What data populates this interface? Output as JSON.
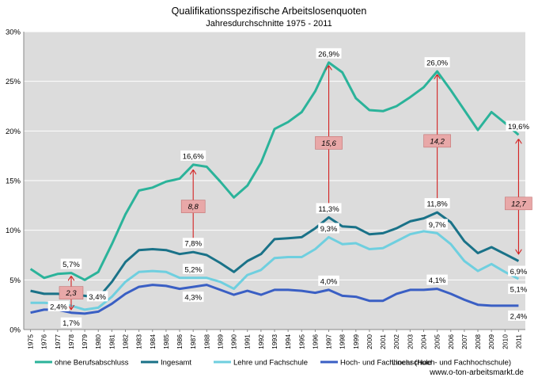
{
  "chart_data": {
    "type": "line",
    "title": "Qualifikationsspezifische Arbeitslosenquoten",
    "subtitle": "Jahresdurchschnitte 1975 - 2011",
    "source": "www.o-ton-arbeitsmarkt.de",
    "ylim": [
      0,
      30
    ],
    "yticks": [
      0,
      5,
      10,
      15,
      20,
      25,
      30
    ],
    "ytick_labels": [
      "0%",
      "5%",
      "10%",
      "15%",
      "20%",
      "25%",
      "30%"
    ],
    "x": [
      "1975",
      "1976",
      "1977",
      "1978",
      "1979",
      "1980",
      "1981",
      "1982",
      "1983",
      "1984",
      "1985",
      "1986",
      "1987",
      "1988",
      "1989",
      "1990",
      "1991",
      "1992",
      "1993",
      "1994",
      "1995",
      "1996",
      "1997",
      "1998",
      "1999",
      "2000",
      "2001",
      "2002",
      "2003",
      "2004",
      "2005",
      "2006",
      "2007",
      "2008",
      "2009",
      "2010",
      "2011"
    ],
    "grid": true,
    "legend_position": "bottom",
    "series": [
      {
        "name": "ohne Berufsabschluss",
        "color": "#2bb39a",
        "values": [
          6.1,
          5.2,
          5.6,
          5.7,
          5.0,
          5.8,
          8.6,
          11.6,
          14.0,
          14.3,
          14.9,
          15.2,
          16.6,
          16.4,
          14.9,
          13.3,
          14.5,
          16.8,
          20.2,
          20.9,
          21.9,
          24.0,
          26.9,
          25.9,
          23.3,
          22.1,
          22.0,
          22.5,
          23.4,
          24.4,
          26.0,
          24.1,
          22.1,
          20.1,
          21.9,
          20.8,
          19.6
        ]
      },
      {
        "name": "Ingesamt",
        "color": "#1a7288",
        "values": [
          3.9,
          3.6,
          3.6,
          3.5,
          3.4,
          3.2,
          4.8,
          6.8,
          8.0,
          8.1,
          8.0,
          7.6,
          7.8,
          7.5,
          6.7,
          5.8,
          6.9,
          7.6,
          9.1,
          9.2,
          9.3,
          10.2,
          11.3,
          10.4,
          10.3,
          9.6,
          9.7,
          10.2,
          10.9,
          11.2,
          11.8,
          10.8,
          8.9,
          7.7,
          8.3,
          7.6,
          6.9
        ]
      },
      {
        "name": "Lehre und Fachschule",
        "color": "#6fcfdf",
        "values": [
          2.7,
          2.7,
          2.6,
          2.4,
          2.0,
          2.2,
          3.3,
          4.8,
          5.8,
          5.9,
          5.8,
          5.2,
          5.2,
          5.2,
          4.8,
          4.1,
          5.5,
          6.0,
          7.2,
          7.3,
          7.3,
          8.1,
          9.3,
          8.6,
          8.7,
          8.1,
          8.2,
          8.9,
          9.6,
          9.9,
          9.7,
          8.6,
          6.9,
          5.9,
          6.6,
          5.8,
          5.1
        ]
      },
      {
        "name": "Hoch- und Fachhochschule",
        "color": "#3a5fc4",
        "values": [
          1.7,
          2.0,
          2.0,
          1.7,
          1.6,
          1.8,
          2.6,
          3.6,
          4.3,
          4.5,
          4.4,
          4.1,
          4.3,
          4.5,
          4.0,
          3.5,
          3.9,
          3.5,
          4.0,
          4.0,
          3.9,
          3.7,
          4.0,
          3.4,
          3.3,
          2.9,
          2.9,
          3.6,
          4.0,
          4.0,
          4.1,
          3.6,
          3.0,
          2.5,
          2.4,
          2.4,
          2.4
        ]
      }
    ],
    "extra_legend": "Linear (Hoch- und Fachhochschule)",
    "point_labels": [
      {
        "series": 0,
        "year": "1978",
        "text": "5,7%",
        "pos": "above"
      },
      {
        "series": 1,
        "year": "1979",
        "text": "3,4%",
        "pos": "right"
      },
      {
        "series": 2,
        "year": "1978",
        "text": "2,4%",
        "pos": "left"
      },
      {
        "series": 3,
        "year": "1978",
        "text": "1,7%",
        "pos": "below"
      },
      {
        "series": 0,
        "year": "1987",
        "text": "16,6%",
        "pos": "above"
      },
      {
        "series": 1,
        "year": "1987",
        "text": "7,8%",
        "pos": "above"
      },
      {
        "series": 2,
        "year": "1987",
        "text": "5,2%",
        "pos": "above"
      },
      {
        "series": 3,
        "year": "1987",
        "text": "4,3%",
        "pos": "below"
      },
      {
        "series": 0,
        "year": "1997",
        "text": "26,9%",
        "pos": "above"
      },
      {
        "series": 1,
        "year": "1997",
        "text": "11,3%",
        "pos": "above"
      },
      {
        "series": 2,
        "year": "1997",
        "text": "9,3%",
        "pos": "above"
      },
      {
        "series": 3,
        "year": "1997",
        "text": "4,0%",
        "pos": "above"
      },
      {
        "series": 0,
        "year": "2005",
        "text": "26,0%",
        "pos": "above"
      },
      {
        "series": 1,
        "year": "2005",
        "text": "11,8%",
        "pos": "above"
      },
      {
        "series": 2,
        "year": "2005",
        "text": "9,7%",
        "pos": "above"
      },
      {
        "series": 3,
        "year": "2005",
        "text": "4,1%",
        "pos": "above"
      },
      {
        "series": 0,
        "year": "2011",
        "text": "19,6%",
        "pos": "above"
      },
      {
        "series": 1,
        "year": "2011",
        "text": "6,9%",
        "pos": "below"
      },
      {
        "series": 2,
        "year": "2011",
        "text": "5,1%",
        "pos": "below"
      },
      {
        "series": 3,
        "year": "2011",
        "text": "2,4%",
        "pos": "below"
      }
    ],
    "ratio_annotations": [
      {
        "year": "1978",
        "from": 5.4,
        "to": 2.0,
        "text": "2,3",
        "box_at": 3.7
      },
      {
        "year": "1987",
        "from": 16.1,
        "to": 8.4,
        "text": "8,8",
        "box_at": 12.4
      },
      {
        "year": "1997",
        "from": 26.6,
        "to": 12.0,
        "text": "15,6",
        "box_at": 18.8
      },
      {
        "year": "2005",
        "from": 25.7,
        "to": 12.4,
        "text": "14,2",
        "box_at": 19.0
      },
      {
        "year": "2011",
        "from": 19.2,
        "to": 7.6,
        "text": "12,7",
        "box_at": 12.7
      }
    ]
  }
}
